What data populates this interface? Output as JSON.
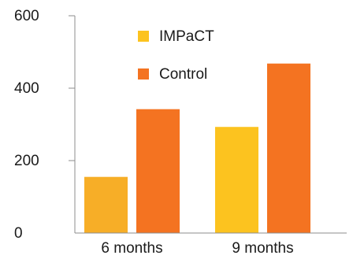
{
  "chart_data": {
    "type": "bar",
    "title": "",
    "xlabel": "",
    "ylabel": "",
    "categories": [
      "6 months",
      "9 months"
    ],
    "ylim": [
      0,
      600
    ],
    "yticks": [
      "0",
      "200",
      "400",
      "600"
    ],
    "grid": false,
    "legend_position": "top-center",
    "series": [
      {
        "name": "IMPaCT",
        "values": [
          155,
          293
        ],
        "colors": [
          "#F7AE27",
          "#FCC31F"
        ]
      },
      {
        "name": "Control",
        "values": [
          342,
          468
        ],
        "colors": [
          "#F47321",
          "#F47321"
        ]
      }
    ]
  }
}
